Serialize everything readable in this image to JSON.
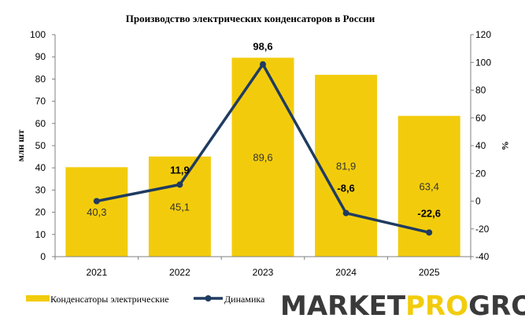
{
  "chart_data": {
    "type": "bar",
    "title": "Производство электрических конденсаторов в России",
    "categories": [
      "2021",
      "2022",
      "2023",
      "2024",
      "2025"
    ],
    "ylabel": "млн шт",
    "y2label": "%",
    "ylim": [
      0,
      100
    ],
    "y2lim": [
      -40,
      120
    ],
    "yticks": [
      0,
      10,
      20,
      30,
      40,
      50,
      60,
      70,
      80,
      90,
      100
    ],
    "y2ticks": [
      -40,
      -20,
      0,
      20,
      40,
      60,
      80,
      100,
      120
    ],
    "grid": false,
    "legend_position": "bottom-left",
    "series": [
      {
        "name": "Конденсаторы электрические",
        "type": "bar",
        "axis": "left",
        "color": "#f2cc0c",
        "values": [
          40.3,
          45.1,
          89.6,
          81.9,
          63.4
        ],
        "labels": [
          "40,3",
          "45,1",
          "89,6",
          "81,9",
          "63,4"
        ]
      },
      {
        "name": "Динамика",
        "type": "line",
        "axis": "right",
        "color": "#1f3b60",
        "values": [
          0,
          11.9,
          98.6,
          -8.6,
          -22.6
        ],
        "labels": [
          "",
          "11,9",
          "98,6",
          "-8,6",
          "-22,6"
        ]
      }
    ]
  },
  "brand": {
    "part1": "MARKET",
    "part2": "PRO",
    "part3": "GROUP",
    "colors": {
      "dark": "#3a3a3a",
      "accent": "#f2cc0c"
    }
  }
}
